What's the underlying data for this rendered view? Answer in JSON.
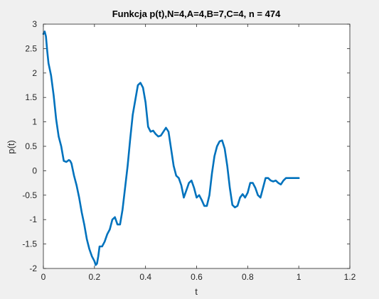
{
  "chart_data": {
    "type": "line",
    "title": "Funkcja p(t),N=4,A=4,B=7,C=4, n = 474",
    "xlabel": "t",
    "ylabel": "p(t)",
    "xlim": [
      0,
      1.2
    ],
    "ylim": [
      -2,
      3
    ],
    "xticks": [
      0,
      0.2,
      0.4,
      0.6,
      0.8,
      1,
      1.2
    ],
    "xtick_labels": [
      "0",
      "0.2",
      "0.4",
      "0.6",
      "0.8",
      "1",
      "1.2"
    ],
    "yticks": [
      -2,
      -1.5,
      -1,
      -0.5,
      0,
      0.5,
      1,
      1.5,
      2,
      2.5,
      3
    ],
    "ytick_labels": [
      "-2",
      "-1.5",
      "-1",
      "-0.5",
      "0",
      "0.5",
      "1",
      "1.5",
      "2",
      "2.5",
      "3"
    ],
    "grid": false,
    "line_color": "#0072bd",
    "series": [
      {
        "x": [
          0,
          0.005,
          0.01,
          0.015,
          0.02,
          0.03,
          0.04,
          0.05,
          0.06,
          0.07,
          0.08,
          0.09,
          0.1,
          0.105,
          0.11,
          0.12,
          0.13,
          0.14,
          0.15,
          0.16,
          0.17,
          0.18,
          0.19,
          0.2,
          0.205,
          0.21,
          0.215,
          0.22,
          0.23,
          0.24,
          0.25,
          0.26,
          0.27,
          0.28,
          0.29,
          0.3,
          0.31,
          0.32,
          0.33,
          0.34,
          0.35,
          0.36,
          0.37,
          0.38,
          0.39,
          0.4,
          0.41,
          0.42,
          0.43,
          0.44,
          0.45,
          0.46,
          0.47,
          0.48,
          0.49,
          0.5,
          0.51,
          0.52,
          0.53,
          0.54,
          0.55,
          0.56,
          0.57,
          0.58,
          0.59,
          0.6,
          0.61,
          0.62,
          0.63,
          0.64,
          0.65,
          0.66,
          0.67,
          0.68,
          0.69,
          0.7,
          0.71,
          0.72,
          0.73,
          0.74,
          0.75,
          0.76,
          0.77,
          0.78,
          0.79,
          0.8,
          0.81,
          0.82,
          0.83,
          0.84,
          0.85,
          0.86,
          0.87,
          0.88,
          0.89,
          0.9,
          0.91,
          0.92,
          0.93,
          0.94,
          0.95,
          0.96,
          0.97,
          0.98,
          0.99,
          1.0
        ],
        "y": [
          2.8,
          2.85,
          2.75,
          2.45,
          2.2,
          1.95,
          1.55,
          1.05,
          0.7,
          0.5,
          0.2,
          0.18,
          0.22,
          0.2,
          0.15,
          -0.1,
          -0.3,
          -0.55,
          -0.85,
          -1.1,
          -1.4,
          -1.6,
          -1.75,
          -1.85,
          -1.93,
          -1.9,
          -1.75,
          -1.55,
          -1.55,
          -1.45,
          -1.3,
          -1.2,
          -1.0,
          -0.95,
          -1.1,
          -1.1,
          -0.8,
          -0.35,
          0.1,
          0.65,
          1.15,
          1.45,
          1.75,
          1.8,
          1.7,
          1.4,
          0.9,
          0.8,
          0.82,
          0.75,
          0.7,
          0.72,
          0.8,
          0.88,
          0.8,
          0.45,
          0.1,
          -0.1,
          -0.15,
          -0.3,
          -0.55,
          -0.4,
          -0.25,
          -0.2,
          -0.35,
          -0.55,
          -0.5,
          -0.6,
          -0.72,
          -0.72,
          -0.5,
          -0.05,
          0.3,
          0.5,
          0.6,
          0.62,
          0.45,
          0.1,
          -0.35,
          -0.7,
          -0.75,
          -0.72,
          -0.55,
          -0.48,
          -0.55,
          -0.45,
          -0.25,
          -0.25,
          -0.35,
          -0.5,
          -0.55,
          -0.35,
          -0.15,
          -0.15,
          -0.2,
          -0.22,
          -0.2,
          -0.25,
          -0.28,
          -0.2,
          -0.15,
          -0.15,
          -0.15,
          -0.15,
          -0.15,
          -0.15
        ]
      }
    ]
  }
}
